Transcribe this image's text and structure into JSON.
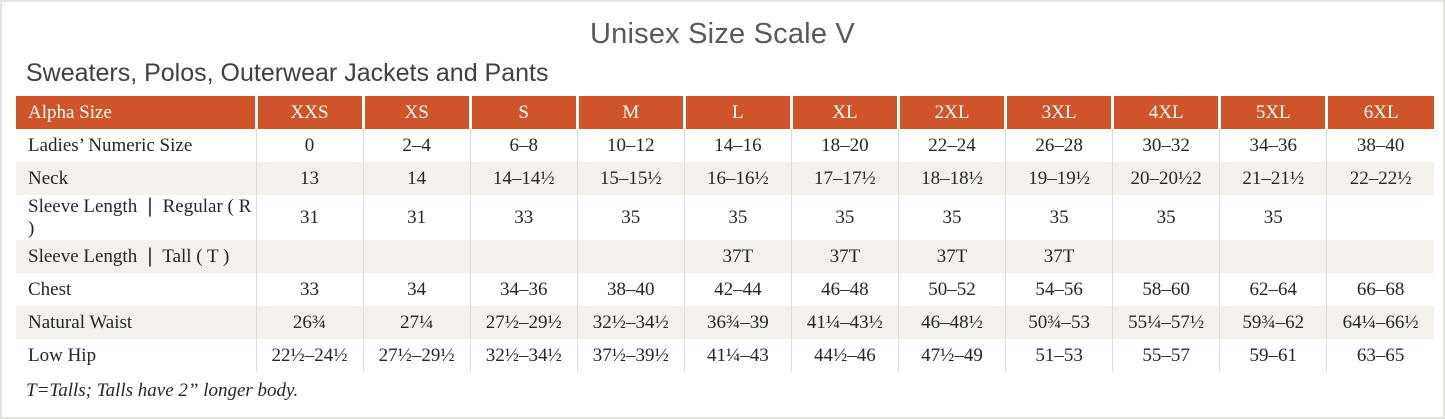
{
  "title": "Unisex Size Scale V",
  "subtitle": "Sweaters, Polos, Outerwear Jackets and Pants",
  "footnote": "T=Talls; Talls have 2” longer body.",
  "colors": {
    "header_bg": "#CF5429",
    "header_text": "#FFFFFF",
    "row_stripe": "#F2F1EE",
    "body_text": "#262626",
    "title_text": "#595959",
    "subtitle_text": "#404040",
    "col_divider": "#DCDCDA",
    "outer_border": "#E3E3E2"
  },
  "table": {
    "columns": [
      "Alpha Size",
      "XXS",
      "XS",
      "S",
      "M",
      "L",
      "XL",
      "2XL",
      "3XL",
      "4XL",
      "5XL",
      "6XL"
    ],
    "rows": [
      {
        "label": "Ladies’ Numeric Size",
        "values": [
          "0",
          "2–4",
          "6–8",
          "10–12",
          "14–16",
          "18–20",
          "22–24",
          "26–28",
          "30–32",
          "34–36",
          "38–40"
        ]
      },
      {
        "label": "Neck",
        "values": [
          "13",
          "14",
          "14–14½",
          "15–15½",
          "16–16½",
          "17–17½",
          "18–18½",
          "19–19½",
          "20–20½2",
          "21–21½",
          "22–22½"
        ]
      },
      {
        "label": "Sleeve Length ❘ Regular ( R )",
        "values": [
          "31",
          "31",
          "33",
          "35",
          "35",
          "35",
          "35",
          "35",
          "35",
          "35",
          ""
        ]
      },
      {
        "label": "Sleeve Length ❘ Tall ( T )",
        "values": [
          "",
          "",
          "",
          "",
          "37T",
          "37T",
          "37T",
          "37T",
          "",
          "",
          ""
        ]
      },
      {
        "label": "Chest",
        "values": [
          "33",
          "34",
          "34–36",
          "38–40",
          "42–44",
          "46–48",
          "50–52",
          "54–56",
          "58–60",
          "62–64",
          "66–68"
        ]
      },
      {
        "label": "Natural Waist",
        "values": [
          "26¾",
          "27¼",
          "27½–29½",
          "32½–34½",
          "36¾–39",
          "41¼–43½",
          "46–48½",
          "50¾–53",
          "55¼–57½",
          "59¾–62",
          "64¼–66½"
        ]
      },
      {
        "label": "Low Hip",
        "values": [
          "22½–24½",
          "27½–29½",
          "32½–34½",
          "37½–39½",
          "41¼–43",
          "44½–46",
          "47½–49",
          "51–53",
          "55–57",
          "59–61",
          "63–65"
        ]
      }
    ]
  }
}
